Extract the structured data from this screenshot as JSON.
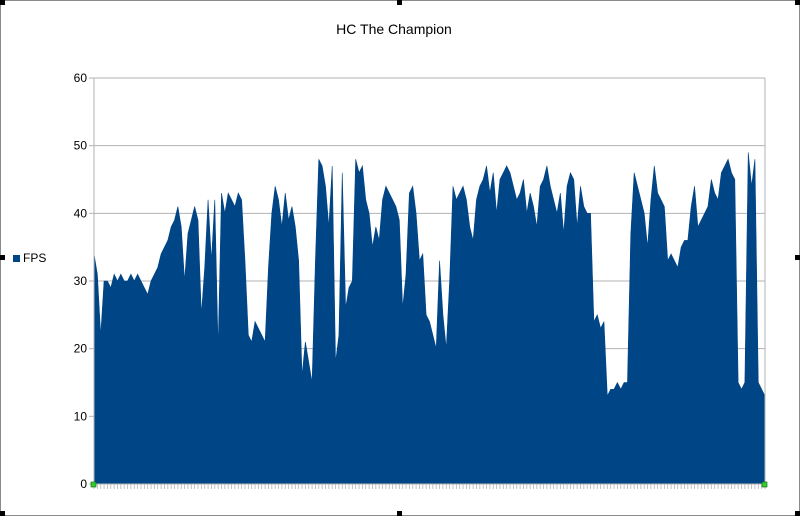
{
  "chart_data": {
    "type": "area",
    "title": "HC The Champion",
    "xlabel": "",
    "ylabel": "",
    "ylim": [
      0,
      60
    ],
    "yticks": [
      0,
      10,
      20,
      30,
      40,
      50,
      60
    ],
    "grid": true,
    "legend_position": "left",
    "series": [
      {
        "name": "FPS",
        "color": "#004586",
        "values": [
          34,
          31,
          22,
          30,
          30,
          29,
          31,
          30,
          31,
          30,
          30,
          31,
          30,
          31,
          30,
          29,
          28,
          30,
          31,
          32,
          34,
          35,
          36,
          38,
          39,
          41,
          38,
          30,
          37,
          39,
          41,
          39,
          25,
          32,
          42,
          33,
          42,
          20,
          43,
          40,
          43,
          42,
          41,
          43,
          42,
          33,
          22,
          21,
          24,
          23,
          22,
          21,
          32,
          40,
          44,
          42,
          38,
          43,
          39,
          41,
          38,
          33,
          16,
          21,
          18,
          15,
          33,
          48,
          47,
          44,
          38,
          47,
          18,
          22,
          46,
          26,
          29,
          30,
          48,
          46,
          47,
          42,
          40,
          35,
          38,
          36,
          42,
          44,
          43,
          42,
          41,
          39,
          26,
          31,
          43,
          44,
          40,
          33,
          34,
          25,
          24,
          22,
          20,
          33,
          25,
          20,
          30,
          44,
          42,
          43,
          44,
          42,
          38,
          36,
          42,
          44,
          45,
          47,
          43,
          46,
          40,
          45,
          46,
          47,
          46,
          44,
          42,
          43,
          45,
          40,
          43,
          41,
          38,
          44,
          45,
          47,
          44,
          42,
          40,
          43,
          37,
          44,
          46,
          45,
          38,
          44,
          41,
          40,
          40,
          24,
          25,
          23,
          24,
          13,
          14,
          14,
          15,
          14,
          15,
          15,
          37,
          46,
          44,
          42,
          40,
          35,
          42,
          47,
          43,
          42,
          41,
          33,
          34,
          33,
          32,
          35,
          36,
          36,
          41,
          44,
          38,
          39,
          40,
          41,
          45,
          43,
          42,
          46,
          47,
          48,
          46,
          45,
          15,
          14,
          15,
          49,
          44,
          48,
          15,
          14,
          13
        ]
      }
    ]
  }
}
